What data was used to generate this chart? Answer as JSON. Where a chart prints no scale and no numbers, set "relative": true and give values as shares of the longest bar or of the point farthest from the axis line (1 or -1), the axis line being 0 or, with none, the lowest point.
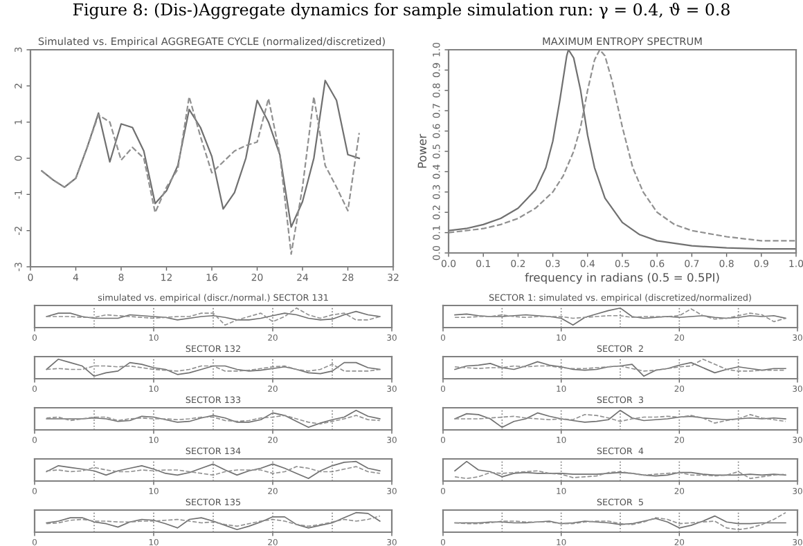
{
  "chart_data": [
    {
      "type": "line",
      "title": "Simulated vs. Empirical AGGREGATE CYCLE (normalized/discretized)",
      "annotations": [
        "Figure 8: (Dis-)Aggregate dynamics for sample simulation run: γ = 0.4, ϑ = 0.8"
      ],
      "xlim": [
        0,
        32
      ],
      "xticks": [
        0,
        4,
        8,
        12,
        16,
        20,
        24,
        28,
        32
      ],
      "ylim": [
        -3,
        3
      ],
      "yticks": [
        -3,
        -2,
        -1,
        0,
        1,
        2,
        3
      ],
      "x": [
        1,
        2,
        3,
        4,
        5,
        6,
        7,
        8,
        9,
        10,
        11,
        12,
        13,
        14,
        15,
        16,
        17,
        18,
        19,
        20,
        21,
        22,
        23,
        24,
        25,
        26,
        27,
        28,
        29
      ],
      "series": [
        {
          "color": "#707070",
          "line_style": "solid",
          "values": [
            -0.35,
            -0.6,
            -0.8,
            -0.55,
            0.3,
            1.25,
            -0.1,
            0.95,
            0.85,
            0.2,
            -1.25,
            -0.9,
            -0.2,
            1.35,
            0.85,
            0.05,
            -1.4,
            -0.95,
            0.0,
            1.6,
            1.0,
            0.1,
            -1.9,
            -1.2,
            0.0,
            2.15,
            1.6,
            0.1,
            0.0
          ]
        },
        {
          "color": "#909090",
          "line_style": "dashed",
          "values": [
            -0.35,
            -0.6,
            -0.8,
            -0.55,
            0.3,
            1.2,
            1.0,
            -0.05,
            0.3,
            0.0,
            -1.5,
            -0.8,
            -0.3,
            1.7,
            0.6,
            -0.4,
            -0.1,
            0.2,
            0.35,
            0.45,
            1.65,
            0.1,
            -2.65,
            -0.8,
            1.7,
            -0.2,
            -0.8,
            -1.45,
            0.7
          ]
        }
      ]
    },
    {
      "type": "line",
      "title": "MAXIMUM ENTROPY SPECTRUM",
      "xlabel": "frequency in radians (0.5 = 0.5PI)",
      "ylabel": "Power",
      "xlim": [
        0,
        1
      ],
      "xticks": [
        {
          "value": 0,
          "label": "0.0"
        },
        0.1,
        0.2,
        0.3,
        0.4,
        0.5,
        0.6,
        0.7,
        0.8,
        0.9,
        {
          "value": 1,
          "label": "1.0"
        }
      ],
      "ylim": [
        0,
        1
      ],
      "yticks": [
        {
          "value": 0,
          "label": "0.0"
        },
        0.1,
        0.2,
        0.3,
        0.4,
        0.5,
        0.6,
        0.7,
        0.8,
        0.9,
        {
          "value": 1,
          "label": "1.0"
        }
      ],
      "series": [
        {
          "color": "#707070",
          "line_style": "solid",
          "x": [
            0,
            0.05,
            0.1,
            0.15,
            0.2,
            0.25,
            0.28,
            0.3,
            0.32,
            0.34,
            0.345,
            0.36,
            0.38,
            0.4,
            0.42,
            0.45,
            0.5,
            0.55,
            0.6,
            0.7,
            0.8,
            0.9,
            1.0
          ],
          "values": [
            0.11,
            0.12,
            0.14,
            0.17,
            0.22,
            0.31,
            0.42,
            0.55,
            0.75,
            0.97,
            1.0,
            0.96,
            0.8,
            0.58,
            0.42,
            0.27,
            0.15,
            0.09,
            0.06,
            0.035,
            0.025,
            0.02,
            0.02
          ]
        },
        {
          "color": "#909090",
          "line_style": "dashed",
          "x": [
            0,
            0.1,
            0.15,
            0.2,
            0.25,
            0.3,
            0.33,
            0.36,
            0.38,
            0.4,
            0.42,
            0.435,
            0.45,
            0.47,
            0.5,
            0.53,
            0.56,
            0.6,
            0.65,
            0.7,
            0.8,
            0.9,
            1.0
          ],
          "values": [
            0.1,
            0.12,
            0.14,
            0.17,
            0.22,
            0.3,
            0.38,
            0.5,
            0.62,
            0.8,
            0.95,
            1.0,
            0.97,
            0.85,
            0.62,
            0.42,
            0.3,
            0.2,
            0.14,
            0.11,
            0.08,
            0.06,
            0.06
          ]
        }
      ]
    },
    {
      "type": "line",
      "relative": true,
      "title": "simulated vs. empirical (discr./normal.) SECTOR 131",
      "xlim": [
        0,
        30
      ],
      "xticks": [
        0,
        10,
        20,
        30
      ],
      "ref_lines": [
        {
          "axis": "x",
          "value": 5,
          "line_style": "dotted",
          "color": "#808080"
        },
        {
          "axis": "x",
          "value": 10,
          "line_style": "dotted",
          "color": "#808080"
        },
        {
          "axis": "x",
          "value": 15,
          "line_style": "dotted",
          "color": "#808080"
        },
        {
          "axis": "x",
          "value": 20,
          "line_style": "dotted",
          "color": "#808080"
        },
        {
          "axis": "x",
          "value": 25,
          "line_style": "dotted",
          "color": "#808080"
        }
      ],
      "x": [
        1,
        2,
        3,
        4,
        5,
        6,
        7,
        8,
        9,
        10,
        11,
        12,
        13,
        14,
        15,
        16,
        17,
        18,
        19,
        20,
        21,
        22,
        23,
        24,
        25,
        26,
        27,
        28,
        29
      ],
      "series": [
        {
          "color": "#707070",
          "line_style": "solid",
          "values": [
            0.5,
            0.7,
            0.7,
            0.5,
            0.4,
            0.4,
            0.4,
            0.6,
            0.55,
            0.5,
            0.45,
            0.3,
            0.4,
            0.5,
            0.55,
            0.45,
            0.3,
            0.3,
            0.4,
            0.55,
            0.7,
            0.6,
            0.4,
            0.3,
            0.35,
            0.6,
            0.8,
            0.6,
            0.5
          ]
        },
        {
          "color": "#909090",
          "line_style": "dashed",
          "values": [
            0.5,
            0.5,
            0.5,
            0.45,
            0.45,
            0.6,
            0.55,
            0.5,
            0.45,
            0.4,
            0.45,
            0.5,
            0.5,
            0.7,
            0.7,
            0.0,
            0.3,
            0.5,
            0.7,
            0.2,
            0.5,
            1.0,
            0.6,
            0.4,
            0.6,
            0.7,
            0.3,
            0.3,
            0.5
          ]
        }
      ]
    },
    {
      "type": "line",
      "relative": true,
      "title": "SECTOR 1: simulated vs. empirical (discretized/normalized)",
      "xlim": [
        0,
        30
      ],
      "xticks": [
        0,
        10,
        20,
        30
      ],
      "ref_lines": [
        {
          "axis": "x",
          "value": 5,
          "line_style": "dotted",
          "color": "#808080"
        },
        {
          "axis": "x",
          "value": 10,
          "line_style": "dotted",
          "color": "#808080"
        },
        {
          "axis": "x",
          "value": 15,
          "line_style": "dotted",
          "color": "#808080"
        },
        {
          "axis": "x",
          "value": 20,
          "line_style": "dotted",
          "color": "#808080"
        },
        {
          "axis": "x",
          "value": 25,
          "line_style": "dotted",
          "color": "#808080"
        }
      ],
      "x": [
        1,
        2,
        3,
        4,
        5,
        6,
        7,
        8,
        9,
        10,
        11,
        12,
        13,
        14,
        15,
        16,
        17,
        18,
        19,
        20,
        21,
        22,
        23,
        24,
        25,
        26,
        27,
        28,
        29
      ],
      "series": [
        {
          "color": "#707070",
          "line_style": "solid",
          "values": [
            0.6,
            0.65,
            0.55,
            0.5,
            0.5,
            0.55,
            0.6,
            0.55,
            0.5,
            0.4,
            0.0,
            0.45,
            0.65,
            0.85,
            1.0,
            0.5,
            0.4,
            0.45,
            0.5,
            0.45,
            0.5,
            0.55,
            0.45,
            0.4,
            0.45,
            0.55,
            0.5,
            0.55,
            0.4
          ]
        },
        {
          "color": "#909090",
          "line_style": "dashed",
          "values": [
            0.45,
            0.45,
            0.5,
            0.5,
            0.6,
            0.5,
            0.45,
            0.5,
            0.5,
            0.5,
            0.4,
            0.45,
            0.5,
            0.55,
            0.55,
            0.45,
            0.5,
            0.5,
            0.5,
            0.55,
            0.95,
            0.55,
            0.35,
            0.4,
            0.55,
            0.7,
            0.6,
            0.2,
            0.4
          ]
        }
      ]
    },
    {
      "type": "line",
      "relative": true,
      "title": "SECTOR 132",
      "xlim": [
        0,
        30
      ],
      "xticks": [
        0,
        10,
        20,
        30
      ],
      "ref_lines": [
        {
          "axis": "x",
          "value": 5,
          "line_style": "dotted",
          "color": "#808080"
        },
        {
          "axis": "x",
          "value": 10,
          "line_style": "dotted",
          "color": "#808080"
        },
        {
          "axis": "x",
          "value": 15,
          "line_style": "dotted",
          "color": "#808080"
        },
        {
          "axis": "x",
          "value": 20,
          "line_style": "dotted",
          "color": "#808080"
        },
        {
          "axis": "x",
          "value": 25,
          "line_style": "dotted",
          "color": "#808080"
        }
      ],
      "x": [
        1,
        2,
        3,
        4,
        5,
        6,
        7,
        8,
        9,
        10,
        11,
        12,
        13,
        14,
        15,
        16,
        17,
        18,
        19,
        20,
        21,
        22,
        23,
        24,
        25,
        26,
        27,
        28,
        29
      ],
      "series": [
        {
          "color": "#707070",
          "line_style": "solid",
          "values": [
            0.4,
            1.0,
            0.8,
            0.6,
            0.0,
            0.2,
            0.3,
            0.8,
            0.7,
            0.5,
            0.4,
            0.1,
            0.2,
            0.4,
            0.6,
            0.6,
            0.4,
            0.3,
            0.35,
            0.45,
            0.55,
            0.4,
            0.2,
            0.15,
            0.3,
            0.8,
            0.8,
            0.5,
            0.4
          ]
        },
        {
          "color": "#909090",
          "line_style": "dashed",
          "values": [
            0.4,
            0.45,
            0.4,
            0.4,
            0.6,
            0.6,
            0.55,
            0.6,
            0.5,
            0.4,
            0.35,
            0.3,
            0.4,
            0.6,
            0.6,
            0.3,
            0.3,
            0.35,
            0.45,
            0.55,
            0.6,
            0.4,
            0.3,
            0.4,
            0.7,
            0.3,
            0.3,
            0.3,
            0.4
          ]
        }
      ]
    },
    {
      "type": "line",
      "relative": true,
      "title": "SECTOR  2",
      "xlim": [
        0,
        30
      ],
      "xticks": [
        0,
        10,
        20,
        30
      ],
      "ref_lines": [
        {
          "axis": "x",
          "value": 5,
          "line_style": "dotted",
          "color": "#808080"
        },
        {
          "axis": "x",
          "value": 10,
          "line_style": "dotted",
          "color": "#808080"
        },
        {
          "axis": "x",
          "value": 15,
          "line_style": "dotted",
          "color": "#808080"
        },
        {
          "axis": "x",
          "value": 20,
          "line_style": "dotted",
          "color": "#808080"
        },
        {
          "axis": "x",
          "value": 25,
          "line_style": "dotted",
          "color": "#808080"
        }
      ],
      "x": [
        1,
        2,
        3,
        4,
        5,
        6,
        7,
        8,
        9,
        10,
        11,
        12,
        13,
        14,
        15,
        16,
        17,
        18,
        19,
        20,
        21,
        22,
        23,
        24,
        25,
        26,
        27,
        28,
        29
      ],
      "series": [
        {
          "color": "#707070",
          "line_style": "solid",
          "values": [
            0.4,
            0.6,
            0.65,
            0.75,
            0.5,
            0.4,
            0.6,
            0.85,
            0.65,
            0.55,
            0.4,
            0.35,
            0.4,
            0.55,
            0.6,
            0.7,
            0.0,
            0.35,
            0.45,
            0.65,
            0.8,
            0.5,
            0.2,
            0.4,
            0.55,
            0.45,
            0.35,
            0.45,
            0.45
          ]
        },
        {
          "color": "#909090",
          "line_style": "dashed",
          "values": [
            0.55,
            0.5,
            0.45,
            0.5,
            0.5,
            0.6,
            0.55,
            0.6,
            0.6,
            0.5,
            0.45,
            0.45,
            0.5,
            0.55,
            0.6,
            0.45,
            0.3,
            0.35,
            0.45,
            0.55,
            0.6,
            1.0,
            0.7,
            0.4,
            0.3,
            0.3,
            0.35,
            0.35,
            0.35
          ]
        }
      ]
    },
    {
      "type": "line",
      "relative": true,
      "title": "SECTOR 133",
      "xlim": [
        0,
        30
      ],
      "xticks": [
        0,
        10,
        20,
        30
      ],
      "ref_lines": [
        {
          "axis": "x",
          "value": 5,
          "line_style": "dotted",
          "color": "#808080"
        },
        {
          "axis": "x",
          "value": 10,
          "line_style": "dotted",
          "color": "#808080"
        },
        {
          "axis": "x",
          "value": 15,
          "line_style": "dotted",
          "color": "#808080"
        },
        {
          "axis": "x",
          "value": 20,
          "line_style": "dotted",
          "color": "#808080"
        },
        {
          "axis": "x",
          "value": 25,
          "line_style": "dotted",
          "color": "#808080"
        }
      ],
      "x": [
        1,
        2,
        3,
        4,
        5,
        6,
        7,
        8,
        9,
        10,
        11,
        12,
        13,
        14,
        15,
        16,
        17,
        18,
        19,
        20,
        21,
        22,
        23,
        24,
        25,
        26,
        27,
        28,
        29
      ],
      "series": [
        {
          "color": "#707070",
          "line_style": "solid",
          "values": [
            0.5,
            0.5,
            0.5,
            0.5,
            0.55,
            0.5,
            0.35,
            0.4,
            0.65,
            0.6,
            0.45,
            0.3,
            0.35,
            0.55,
            0.7,
            0.55,
            0.3,
            0.3,
            0.45,
            0.85,
            0.7,
            0.35,
            0.0,
            0.25,
            0.45,
            0.6,
            1.0,
            0.65,
            0.5
          ]
        },
        {
          "color": "#909090",
          "line_style": "dashed",
          "values": [
            0.55,
            0.6,
            0.4,
            0.5,
            0.6,
            0.6,
            0.4,
            0.5,
            0.55,
            0.5,
            0.5,
            0.45,
            0.5,
            0.6,
            0.6,
            0.4,
            0.35,
            0.4,
            0.55,
            0.6,
            0.7,
            0.5,
            0.3,
            0.2,
            0.35,
            0.5,
            0.7,
            0.45,
            0.4
          ]
        }
      ]
    },
    {
      "type": "line",
      "relative": true,
      "title": "SECTOR  3",
      "xlim": [
        0,
        30
      ],
      "xticks": [
        0,
        10,
        20,
        30
      ],
      "ref_lines": [
        {
          "axis": "x",
          "value": 5,
          "line_style": "dotted",
          "color": "#808080"
        },
        {
          "axis": "x",
          "value": 10,
          "line_style": "dotted",
          "color": "#808080"
        },
        {
          "axis": "x",
          "value": 15,
          "line_style": "dotted",
          "color": "#808080"
        },
        {
          "axis": "x",
          "value": 20,
          "line_style": "dotted",
          "color": "#808080"
        },
        {
          "axis": "x",
          "value": 25,
          "line_style": "dotted",
          "color": "#808080"
        }
      ],
      "x": [
        1,
        2,
        3,
        4,
        5,
        6,
        7,
        8,
        9,
        10,
        11,
        12,
        13,
        14,
        15,
        16,
        17,
        18,
        19,
        20,
        21,
        22,
        23,
        24,
        25,
        26,
        27,
        28,
        29
      ],
      "series": [
        {
          "color": "#707070",
          "line_style": "solid",
          "values": [
            0.5,
            0.8,
            0.75,
            0.5,
            0.0,
            0.35,
            0.5,
            0.85,
            0.65,
            0.5,
            0.4,
            0.3,
            0.35,
            0.45,
            1.0,
            0.55,
            0.4,
            0.45,
            0.5,
            0.6,
            0.65,
            0.55,
            0.5,
            0.45,
            0.5,
            0.55,
            0.5,
            0.55,
            0.5
          ]
        },
        {
          "color": "#909090",
          "line_style": "dashed",
          "values": [
            0.5,
            0.5,
            0.5,
            0.55,
            0.6,
            0.65,
            0.55,
            0.5,
            0.45,
            0.5,
            0.45,
            0.75,
            0.7,
            0.55,
            0.35,
            0.5,
            0.6,
            0.6,
            0.65,
            0.6,
            0.7,
            0.55,
            0.25,
            0.4,
            0.5,
            0.75,
            0.55,
            0.45,
            0.35
          ]
        }
      ]
    },
    {
      "type": "line",
      "relative": true,
      "title": "SECTOR 134",
      "xlim": [
        0,
        30
      ],
      "xticks": [
        0,
        10,
        20,
        30
      ],
      "ref_lines": [
        {
          "axis": "x",
          "value": 5,
          "line_style": "dotted",
          "color": "#808080"
        },
        {
          "axis": "x",
          "value": 10,
          "line_style": "dotted",
          "color": "#808080"
        },
        {
          "axis": "x",
          "value": 15,
          "line_style": "dotted",
          "color": "#808080"
        },
        {
          "axis": "x",
          "value": 20,
          "line_style": "dotted",
          "color": "#808080"
        },
        {
          "axis": "x",
          "value": 25,
          "line_style": "dotted",
          "color": "#808080"
        }
      ],
      "x": [
        1,
        2,
        3,
        4,
        5,
        6,
        7,
        8,
        9,
        10,
        11,
        12,
        13,
        14,
        15,
        16,
        17,
        18,
        19,
        20,
        21,
        22,
        23,
        24,
        25,
        26,
        27,
        28,
        29
      ],
      "series": [
        {
          "color": "#707070",
          "line_style": "solid",
          "values": [
            0.4,
            0.75,
            0.65,
            0.55,
            0.45,
            0.2,
            0.45,
            0.6,
            0.75,
            0.55,
            0.3,
            0.2,
            0.35,
            0.6,
            0.85,
            0.5,
            0.2,
            0.45,
            0.6,
            0.85,
            0.6,
            0.3,
            0.0,
            0.45,
            0.75,
            0.95,
            1.0,
            0.6,
            0.45
          ]
        },
        {
          "color": "#909090",
          "line_style": "dashed",
          "values": [
            0.45,
            0.5,
            0.4,
            0.45,
            0.65,
            0.5,
            0.4,
            0.4,
            0.5,
            0.45,
            0.5,
            0.5,
            0.4,
            0.3,
            0.2,
            0.4,
            0.5,
            0.5,
            0.5,
            0.3,
            0.4,
            0.7,
            0.6,
            0.4,
            0.4,
            0.55,
            0.7,
            0.4,
            0.3
          ]
        }
      ]
    },
    {
      "type": "line",
      "relative": true,
      "title": "SECTOR  4",
      "xlim": [
        0,
        30
      ],
      "xticks": [
        0,
        10,
        20,
        30
      ],
      "ref_lines": [
        {
          "axis": "x",
          "value": 5,
          "line_style": "dotted",
          "color": "#808080"
        },
        {
          "axis": "x",
          "value": 10,
          "line_style": "dotted",
          "color": "#808080"
        },
        {
          "axis": "x",
          "value": 15,
          "line_style": "dotted",
          "color": "#808080"
        },
        {
          "axis": "x",
          "value": 20,
          "line_style": "dotted",
          "color": "#808080"
        },
        {
          "axis": "x",
          "value": 25,
          "line_style": "dotted",
          "color": "#808080"
        }
      ],
      "x": [
        1,
        2,
        3,
        4,
        5,
        6,
        7,
        8,
        9,
        10,
        11,
        12,
        13,
        14,
        15,
        16,
        17,
        18,
        19,
        20,
        21,
        22,
        23,
        24,
        25,
        26,
        27,
        28,
        29
      ],
      "series": [
        {
          "color": "#707070",
          "line_style": "solid",
          "values": [
            0.45,
            1.0,
            0.5,
            0.4,
            0.1,
            0.3,
            0.35,
            0.3,
            0.3,
            0.3,
            0.25,
            0.25,
            0.25,
            0.3,
            0.35,
            0.3,
            0.2,
            0.15,
            0.2,
            0.35,
            0.35,
            0.25,
            0.2,
            0.2,
            0.2,
            0.25,
            0.2,
            0.25,
            0.2
          ]
        },
        {
          "color": "#909090",
          "line_style": "dashed",
          "values": [
            0.1,
            0.0,
            0.1,
            0.35,
            0.3,
            0.35,
            0.4,
            0.45,
            0.3,
            0.25,
            0.05,
            0.1,
            0.15,
            0.35,
            0.4,
            0.3,
            0.2,
            0.25,
            0.3,
            0.35,
            0.2,
            0.2,
            0.15,
            0.2,
            0.4,
            0.0,
            0.1,
            0.2,
            0.25
          ]
        }
      ]
    },
    {
      "type": "line",
      "relative": true,
      "title": "SECTOR 135",
      "xlim": [
        0,
        30
      ],
      "xticks": [
        0,
        10,
        20,
        30
      ],
      "ref_lines": [
        {
          "axis": "x",
          "value": 5,
          "line_style": "dotted",
          "color": "#808080"
        },
        {
          "axis": "x",
          "value": 10,
          "line_style": "dotted",
          "color": "#808080"
        },
        {
          "axis": "x",
          "value": 15,
          "line_style": "dotted",
          "color": "#808080"
        },
        {
          "axis": "x",
          "value": 20,
          "line_style": "dotted",
          "color": "#808080"
        },
        {
          "axis": "x",
          "value": 25,
          "line_style": "dotted",
          "color": "#808080"
        }
      ],
      "x": [
        1,
        2,
        3,
        4,
        5,
        6,
        7,
        8,
        9,
        10,
        11,
        12,
        13,
        14,
        15,
        16,
        17,
        18,
        19,
        20,
        21,
        22,
        23,
        24,
        25,
        26,
        27,
        28,
        29
      ],
      "series": [
        {
          "color": "#707070",
          "line_style": "solid",
          "values": [
            0.4,
            0.5,
            0.7,
            0.7,
            0.45,
            0.35,
            0.15,
            0.45,
            0.6,
            0.55,
            0.35,
            0.1,
            0.6,
            0.7,
            0.5,
            0.25,
            0.0,
            0.2,
            0.45,
            0.75,
            0.75,
            0.3,
            0.1,
            0.25,
            0.4,
            0.7,
            1.0,
            0.95,
            0.5
          ]
        },
        {
          "color": "#909090",
          "line_style": "dashed",
          "values": [
            0.35,
            0.4,
            0.55,
            0.6,
            0.5,
            0.5,
            0.45,
            0.45,
            0.5,
            0.5,
            0.55,
            0.6,
            0.5,
            0.4,
            0.45,
            0.3,
            0.2,
            0.35,
            0.5,
            0.6,
            0.5,
            0.3,
            0.2,
            0.3,
            0.45,
            0.6,
            0.5,
            0.6,
            0.8
          ]
        }
      ]
    },
    {
      "type": "line",
      "relative": true,
      "title": "SECTOR  5",
      "xlim": [
        0,
        30
      ],
      "xticks": [
        0,
        10,
        20,
        30
      ],
      "ref_lines": [
        {
          "axis": "x",
          "value": 5,
          "line_style": "dotted",
          "color": "#808080"
        },
        {
          "axis": "x",
          "value": 10,
          "line_style": "dotted",
          "color": "#808080"
        },
        {
          "axis": "x",
          "value": 15,
          "line_style": "dotted",
          "color": "#808080"
        },
        {
          "axis": "x",
          "value": 20,
          "line_style": "dotted",
          "color": "#808080"
        },
        {
          "axis": "x",
          "value": 25,
          "line_style": "dotted",
          "color": "#808080"
        }
      ],
      "x": [
        1,
        2,
        3,
        4,
        5,
        6,
        7,
        8,
        9,
        10,
        11,
        12,
        13,
        14,
        15,
        16,
        17,
        18,
        19,
        20,
        21,
        22,
        23,
        24,
        25,
        26,
        27,
        28,
        29
      ],
      "series": [
        {
          "color": "#707070",
          "line_style": "solid",
          "values": [
            0.4,
            0.4,
            0.4,
            0.45,
            0.45,
            0.4,
            0.4,
            0.45,
            0.5,
            0.35,
            0.4,
            0.5,
            0.45,
            0.4,
            0.3,
            0.35,
            0.5,
            0.65,
            0.45,
            0.1,
            0.25,
            0.5,
            0.8,
            0.45,
            0.35,
            0.35,
            0.4,
            0.4,
            0.4
          ]
        },
        {
          "color": "#909090",
          "line_style": "dashed",
          "values": [
            0.4,
            0.35,
            0.35,
            0.4,
            0.5,
            0.5,
            0.45,
            0.45,
            0.45,
            0.35,
            0.35,
            0.45,
            0.5,
            0.5,
            0.35,
            0.3,
            0.45,
            0.7,
            0.6,
            0.35,
            0.4,
            0.45,
            0.5,
            0.1,
            0.0,
            0.1,
            0.3,
            0.6,
            1.0
          ]
        }
      ]
    }
  ]
}
